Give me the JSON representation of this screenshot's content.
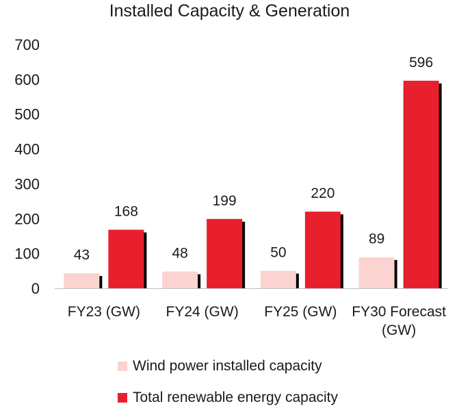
{
  "chart_data": {
    "type": "bar",
    "title": "Installed Capacity & Generation",
    "categories": [
      [
        "FY23 (GW)"
      ],
      [
        "FY24 (GW)"
      ],
      [
        "FY25 (GW)"
      ],
      [
        "FY30 Forecast",
        "(GW)"
      ]
    ],
    "series": [
      {
        "name": "Wind power installed capacity",
        "values": [
          43,
          48,
          50,
          89
        ],
        "color": "#fbd3d0"
      },
      {
        "name": "Total renewable energy capacity",
        "values": [
          168,
          199,
          220,
          596
        ],
        "color": "#e8202e"
      }
    ],
    "shadow_color": "#000000",
    "ylim": [
      0,
      700
    ],
    "yticks": [
      0,
      100,
      200,
      300,
      400,
      500,
      600,
      700
    ],
    "xlabel": "",
    "ylabel": "",
    "grid": false,
    "legend_position": "bottom"
  }
}
